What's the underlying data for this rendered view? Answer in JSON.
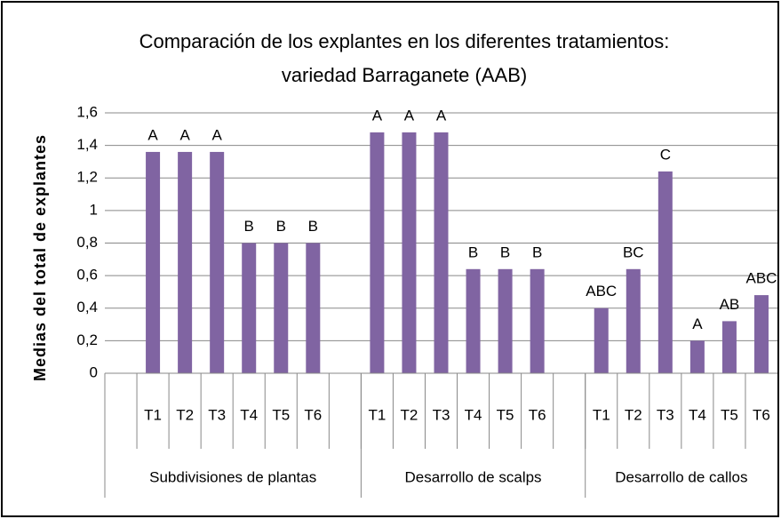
{
  "chart_data": {
    "type": "bar",
    "title": [
      "Comparación  de los explantes en los diferentes tratamientos:",
      "variedad Barraganete (AAB)"
    ],
    "y_label": "Medias del  total  de  explantes",
    "color": "#8064a2",
    "ylim": [
      0,
      1.6
    ],
    "yticks": [
      0,
      {
        "value": 0.2,
        "label": "0,2"
      },
      {
        "value": 0.4,
        "label": "0,4"
      },
      {
        "value": 0.6,
        "label": "0,6"
      },
      {
        "value": 0.8,
        "label": "0,8"
      },
      1,
      {
        "value": 1.2,
        "label": "1,2"
      },
      {
        "value": 1.4,
        "label": "1,4"
      },
      {
        "value": 1.6,
        "label": "1,6"
      }
    ],
    "grid": true,
    "groups": [
      {
        "label": "Subdivisiones de plantas",
        "categories": [
          null,
          "T1",
          "T2",
          "T3",
          "T4",
          "T5",
          "T6",
          null
        ],
        "values": [
          null,
          1.36,
          1.36,
          1.36,
          0.8,
          0.8,
          0.8,
          null
        ],
        "letters": [
          null,
          "A",
          "A",
          "A",
          "B",
          "B",
          "B",
          null
        ]
      },
      {
        "label": "Desarrollo de scalps",
        "categories": [
          "T1",
          "T2",
          "T3",
          "T4",
          "T5",
          "T6",
          null
        ],
        "values": [
          1.48,
          1.48,
          1.48,
          0.64,
          0.64,
          0.64,
          null
        ],
        "letters": [
          "A",
          "A",
          "A",
          "B",
          "B",
          "B",
          null
        ]
      },
      {
        "label": "Desarrollo de callos",
        "categories": [
          "T1",
          "T2",
          "T3",
          "T4",
          "T5",
          "T6"
        ],
        "values": [
          0.4,
          0.64,
          1.24,
          0.2,
          0.32,
          0.48
        ],
        "letters": [
          "ABC",
          "BC",
          "C",
          "A",
          "AB",
          "ABC"
        ]
      }
    ]
  }
}
